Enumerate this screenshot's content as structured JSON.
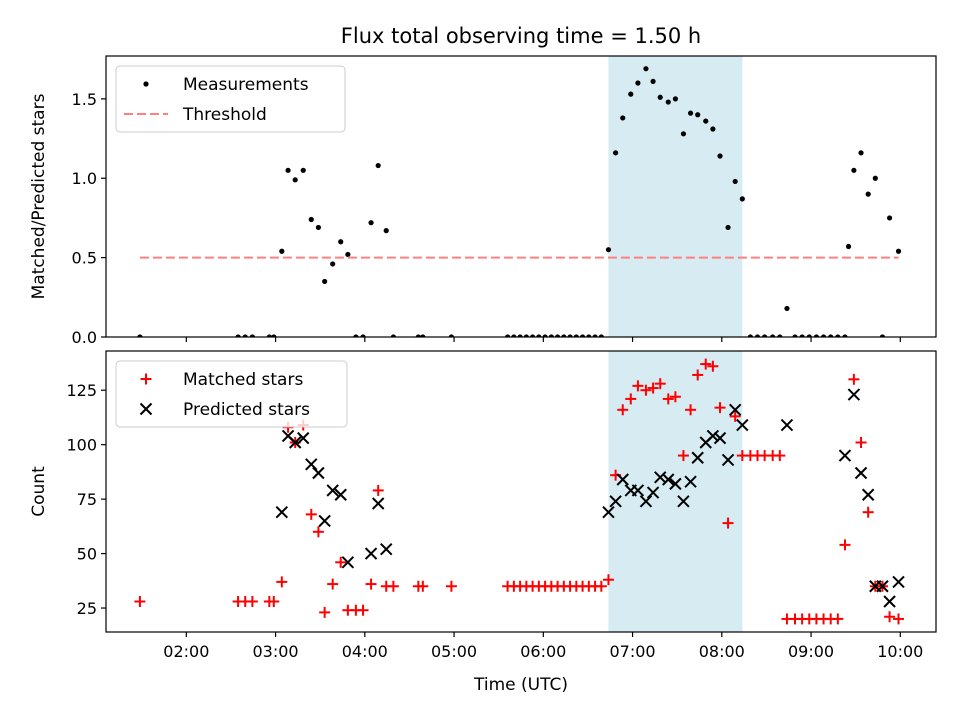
{
  "chart_data": {
    "title": "Flux total observing time = 1.50 h",
    "xlabel": "Time (UTC)",
    "xlim": [
      1.1,
      10.4
    ],
    "x_ticks": [
      2,
      3,
      4,
      5,
      6,
      7,
      8,
      9,
      10
    ],
    "x_tick_labels": [
      "02:00",
      "03:00",
      "04:00",
      "05:00",
      "06:00",
      "07:00",
      "08:00",
      "09:00",
      "10:00"
    ],
    "shaded_interval": {
      "start": 6.73,
      "end": 8.23,
      "color": "#add8e6"
    },
    "panels": [
      {
        "type": "scatter",
        "ylabel": "Matched/Predicted stars",
        "ylim": [
          0,
          1.77
        ],
        "y_ticks": [
          0.0,
          0.5,
          1.0,
          1.5
        ],
        "y_tick_labels": [
          "0.0",
          "0.5",
          "1.0",
          "1.5"
        ],
        "legend": {
          "position": "top-left",
          "entries": [
            "Measurements",
            "Threshold"
          ]
        },
        "series": [
          {
            "name": "Measurements",
            "style": "dot",
            "color": "#000000",
            "points": [
              [
                1.48,
                0.0
              ],
              [
                2.58,
                0.0
              ],
              [
                2.66,
                0.0
              ],
              [
                2.74,
                0.0
              ],
              [
                2.93,
                0.0
              ],
              [
                2.98,
                0.0
              ],
              [
                3.07,
                0.54
              ],
              [
                3.14,
                1.05
              ],
              [
                3.22,
                0.99
              ],
              [
                3.31,
                1.05
              ],
              [
                3.4,
                0.74
              ],
              [
                3.48,
                0.69
              ],
              [
                3.55,
                0.35
              ],
              [
                3.64,
                0.46
              ],
              [
                3.73,
                0.6
              ],
              [
                3.81,
                0.52
              ],
              [
                3.9,
                0.0
              ],
              [
                3.98,
                0.0
              ],
              [
                4.07,
                0.72
              ],
              [
                4.15,
                1.08
              ],
              [
                4.24,
                0.67
              ],
              [
                4.32,
                0.0
              ],
              [
                4.6,
                0.0
              ],
              [
                4.65,
                0.0
              ],
              [
                4.97,
                0.0
              ],
              [
                5.6,
                0.0
              ],
              [
                5.67,
                0.0
              ],
              [
                5.74,
                0.0
              ],
              [
                5.81,
                0.0
              ],
              [
                5.88,
                0.0
              ],
              [
                5.95,
                0.0
              ],
              [
                6.02,
                0.0
              ],
              [
                6.09,
                0.0
              ],
              [
                6.16,
                0.0
              ],
              [
                6.23,
                0.0
              ],
              [
                6.3,
                0.0
              ],
              [
                6.37,
                0.0
              ],
              [
                6.44,
                0.0
              ],
              [
                6.51,
                0.0
              ],
              [
                6.58,
                0.0
              ],
              [
                6.65,
                0.0
              ],
              [
                6.73,
                0.55
              ],
              [
                6.81,
                1.16
              ],
              [
                6.89,
                1.38
              ],
              [
                6.98,
                1.53
              ],
              [
                7.06,
                1.6
              ],
              [
                7.15,
                1.69
              ],
              [
                7.23,
                1.61
              ],
              [
                7.31,
                1.51
              ],
              [
                7.4,
                1.48
              ],
              [
                7.48,
                1.5
              ],
              [
                7.57,
                1.28
              ],
              [
                7.65,
                1.41
              ],
              [
                7.73,
                1.4
              ],
              [
                7.82,
                1.36
              ],
              [
                7.9,
                1.31
              ],
              [
                7.98,
                1.14
              ],
              [
                8.07,
                0.69
              ],
              [
                8.15,
                0.98
              ],
              [
                8.23,
                0.87
              ],
              [
                8.32,
                0.0
              ],
              [
                8.4,
                0.0
              ],
              [
                8.48,
                0.0
              ],
              [
                8.57,
                0.0
              ],
              [
                8.65,
                0.0
              ],
              [
                8.73,
                0.18
              ],
              [
                8.82,
                0.0
              ],
              [
                8.9,
                0.0
              ],
              [
                8.98,
                0.0
              ],
              [
                9.06,
                0.0
              ],
              [
                9.14,
                0.0
              ],
              [
                9.22,
                0.0
              ],
              [
                9.3,
                0.0
              ],
              [
                9.38,
                0.0
              ],
              [
                9.42,
                0.57
              ],
              [
                9.48,
                1.05
              ],
              [
                9.56,
                1.16
              ],
              [
                9.64,
                0.9
              ],
              [
                9.72,
                1.0
              ],
              [
                9.8,
                0.0
              ],
              [
                9.88,
                0.75
              ],
              [
                9.98,
                0.54
              ]
            ]
          },
          {
            "name": "Threshold",
            "style": "dashed-line",
            "color": "#ff8080",
            "points": [
              [
                1.48,
                0.5
              ],
              [
                9.98,
                0.5
              ]
            ]
          }
        ]
      },
      {
        "type": "scatter",
        "ylabel": "Count",
        "ylim": [
          14,
          143
        ],
        "y_ticks": [
          25,
          50,
          75,
          100,
          125
        ],
        "y_tick_labels": [
          "25",
          "50",
          "75",
          "100",
          "125"
        ],
        "legend": {
          "position": "top-left",
          "entries": [
            "Matched stars",
            "Predicted stars"
          ]
        },
        "series": [
          {
            "name": "Matched stars",
            "style": "plus",
            "color": "#ff0000",
            "points": [
              [
                1.48,
                28
              ],
              [
                2.58,
                28
              ],
              [
                2.66,
                28
              ],
              [
                2.74,
                28
              ],
              [
                2.93,
                28
              ],
              [
                2.98,
                28
              ],
              [
                3.07,
                37
              ],
              [
                3.14,
                108
              ],
              [
                3.22,
                101
              ],
              [
                3.31,
                109
              ],
              [
                3.4,
                68
              ],
              [
                3.48,
                60
              ],
              [
                3.55,
                23
              ],
              [
                3.64,
                36
              ],
              [
                3.73,
                46
              ],
              [
                3.81,
                24
              ],
              [
                3.9,
                24
              ],
              [
                3.98,
                24
              ],
              [
                4.07,
                36
              ],
              [
                4.15,
                79
              ],
              [
                4.24,
                35
              ],
              [
                4.32,
                35
              ],
              [
                4.6,
                35
              ],
              [
                4.65,
                35
              ],
              [
                4.97,
                35
              ],
              [
                5.6,
                35
              ],
              [
                5.67,
                35
              ],
              [
                5.74,
                35
              ],
              [
                5.81,
                35
              ],
              [
                5.88,
                35
              ],
              [
                5.95,
                35
              ],
              [
                6.02,
                35
              ],
              [
                6.09,
                35
              ],
              [
                6.16,
                35
              ],
              [
                6.23,
                35
              ],
              [
                6.3,
                35
              ],
              [
                6.37,
                35
              ],
              [
                6.44,
                35
              ],
              [
                6.51,
                35
              ],
              [
                6.58,
                35
              ],
              [
                6.65,
                35
              ],
              [
                6.73,
                38
              ],
              [
                6.81,
                86
              ],
              [
                6.89,
                116
              ],
              [
                6.98,
                121
              ],
              [
                7.06,
                127
              ],
              [
                7.15,
                125
              ],
              [
                7.23,
                126
              ],
              [
                7.31,
                128
              ],
              [
                7.4,
                121
              ],
              [
                7.48,
                122
              ],
              [
                7.57,
                95
              ],
              [
                7.65,
                116
              ],
              [
                7.73,
                132
              ],
              [
                7.82,
                137
              ],
              [
                7.9,
                136
              ],
              [
                7.98,
                117
              ],
              [
                8.07,
                64
              ],
              [
                8.15,
                113
              ],
              [
                8.23,
                95
              ],
              [
                8.32,
                95
              ],
              [
                8.4,
                95
              ],
              [
                8.48,
                95
              ],
              [
                8.57,
                95
              ],
              [
                8.65,
                95
              ],
              [
                8.73,
                20
              ],
              [
                8.82,
                20
              ],
              [
                8.9,
                20
              ],
              [
                8.98,
                20
              ],
              [
                9.06,
                20
              ],
              [
                9.14,
                20
              ],
              [
                9.22,
                20
              ],
              [
                9.3,
                20
              ],
              [
                9.38,
                54
              ],
              [
                9.48,
                130
              ],
              [
                9.56,
                101
              ],
              [
                9.64,
                69
              ],
              [
                9.72,
                35
              ],
              [
                9.8,
                35
              ],
              [
                9.88,
                21
              ],
              [
                9.98,
                20
              ]
            ]
          },
          {
            "name": "Predicted stars",
            "style": "x",
            "color": "#000000",
            "points": [
              [
                3.07,
                69
              ],
              [
                3.14,
                104
              ],
              [
                3.22,
                101
              ],
              [
                3.31,
                103
              ],
              [
                3.4,
                91
              ],
              [
                3.48,
                87
              ],
              [
                3.55,
                65
              ],
              [
                3.64,
                79
              ],
              [
                3.73,
                77
              ],
              [
                3.81,
                46
              ],
              [
                4.07,
                50
              ],
              [
                4.15,
                73
              ],
              [
                4.24,
                52
              ],
              [
                6.73,
                69
              ],
              [
                6.81,
                74
              ],
              [
                6.89,
                84
              ],
              [
                6.98,
                79
              ],
              [
                7.06,
                79
              ],
              [
                7.15,
                74
              ],
              [
                7.23,
                78
              ],
              [
                7.31,
                85
              ],
              [
                7.4,
                84
              ],
              [
                7.48,
                82
              ],
              [
                7.57,
                74
              ],
              [
                7.65,
                83
              ],
              [
                7.73,
                94
              ],
              [
                7.82,
                101
              ],
              [
                7.9,
                104
              ],
              [
                7.98,
                103
              ],
              [
                8.07,
                93
              ],
              [
                8.15,
                116
              ],
              [
                8.23,
                109
              ],
              [
                8.73,
                109
              ],
              [
                9.38,
                95
              ],
              [
                9.48,
                123
              ],
              [
                9.56,
                87
              ],
              [
                9.64,
                77
              ],
              [
                9.72,
                35
              ],
              [
                9.8,
                35
              ],
              [
                9.88,
                28
              ],
              [
                9.98,
                37
              ]
            ]
          }
        ]
      }
    ]
  }
}
